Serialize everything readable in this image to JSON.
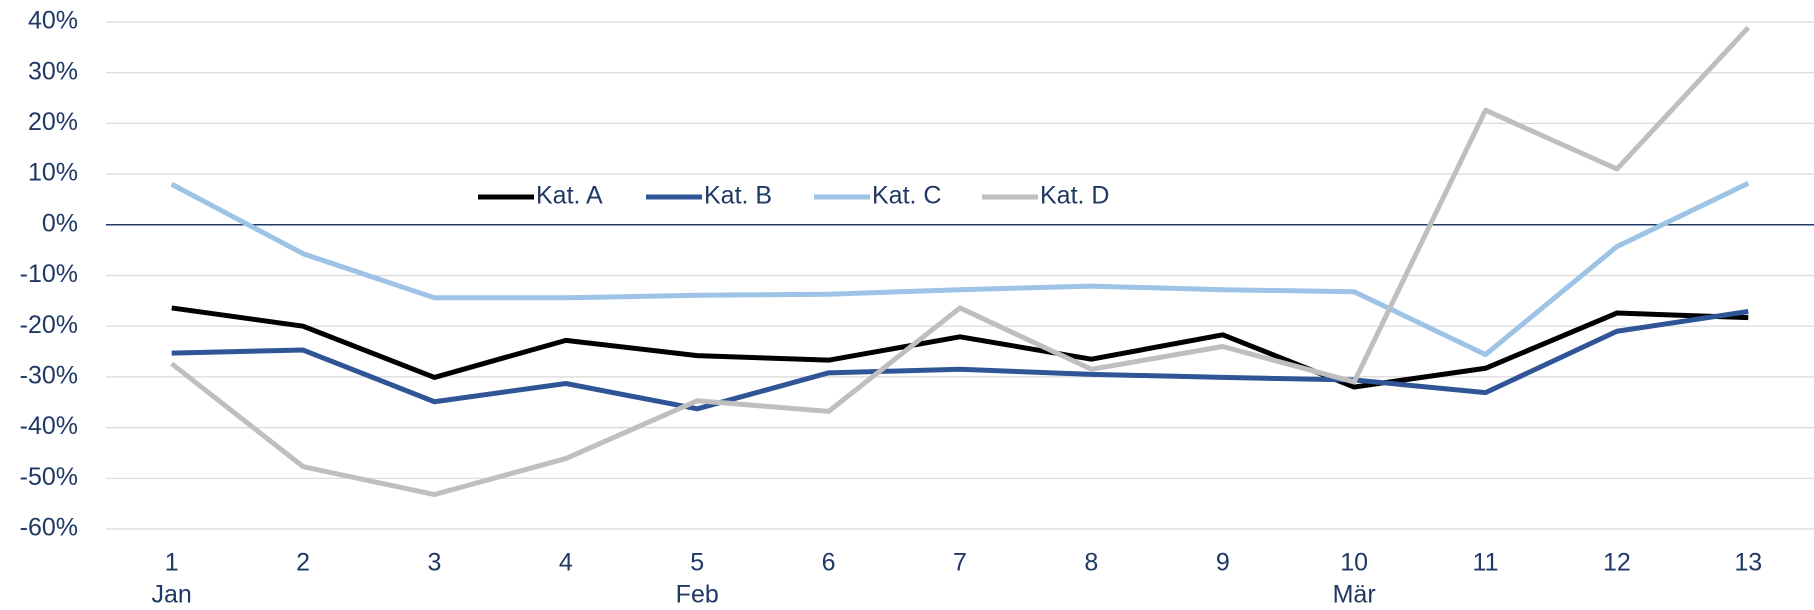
{
  "chart_data": {
    "type": "line",
    "categories": [
      "1",
      "2",
      "3",
      "4",
      "5",
      "6",
      "7",
      "8",
      "9",
      "10",
      "11",
      "12",
      "13"
    ],
    "months": [
      "Jan",
      null,
      null,
      null,
      "Feb",
      null,
      null,
      null,
      null,
      "Mär",
      null,
      null,
      null
    ],
    "series": [
      {
        "name": "Kat. A",
        "color": "#000000",
        "values": [
          -16.4,
          -20,
          -30.1,
          -22.8,
          -25.8,
          -26.7,
          -22.1,
          -26.5,
          -21.7,
          -32,
          -28.3,
          -17.4,
          -18.3
        ]
      },
      {
        "name": "Kat. B",
        "color": "#2f5597",
        "values": [
          -25.3,
          -24.7,
          -34.9,
          -31.3,
          -36.3,
          -29.2,
          -28.5,
          -29.5,
          -30.1,
          -30.6,
          -33.1,
          -21,
          -17.1
        ]
      },
      {
        "name": "Kat. C",
        "color": "#9dc3e6",
        "values": [
          8,
          -5.7,
          -14.4,
          -14.4,
          -13.9,
          -13.7,
          -12.8,
          -12.1,
          -12.8,
          -13.2,
          -25.6,
          -4.3,
          8.2
        ]
      },
      {
        "name": "Kat. D",
        "color": "#bfbfbf",
        "values": [
          -27.4,
          -47.7,
          -53.2,
          -46.1,
          -34.7,
          -36.8,
          -16.4,
          -28.5,
          -24,
          -31,
          22.6,
          11,
          38.9
        ]
      }
    ],
    "ylim": [
      -60,
      40
    ],
    "yticks": [
      {
        "value": 40,
        "label": "40%"
      },
      {
        "value": 30,
        "label": "30%"
      },
      {
        "value": 20,
        "label": "20%"
      },
      {
        "value": 10,
        "label": "10%"
      },
      {
        "value": 0,
        "label": "0%"
      },
      {
        "value": -10,
        "label": "-10%"
      },
      {
        "value": -20,
        "label": "-20%"
      },
      {
        "value": -30,
        "label": "-30%"
      },
      {
        "value": -40,
        "label": "-40%"
      },
      {
        "value": -50,
        "label": "-50%"
      },
      {
        "value": -60,
        "label": "-60%"
      }
    ],
    "grid": true
  }
}
